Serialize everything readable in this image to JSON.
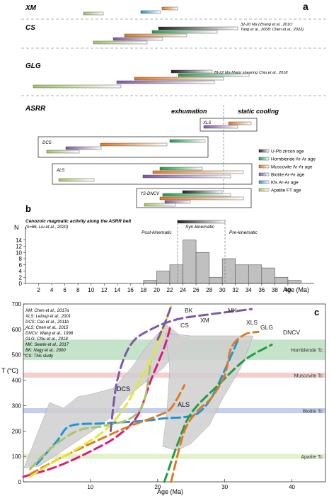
{
  "panel_labels": {
    "a": "a",
    "b": "b",
    "c": "c"
  },
  "panel_a": {
    "sections": [
      {
        "id": "xm",
        "label": "XM"
      },
      {
        "id": "cs",
        "label": "CS",
        "note": "32-20 Ma (Zhang et al., 2010;\nTang et al., 2008; Chen et al., 2022)"
      },
      {
        "id": "glg",
        "label": "GLG",
        "note": "28-22 Ma Major shearing Chiu et al., 2018"
      },
      {
        "id": "asrr",
        "label": "ASRR",
        "phase_left": "exhumation",
        "phase_right": "static cooling"
      }
    ],
    "boxes": [
      {
        "label": "XLS"
      },
      {
        "label": "DCS"
      },
      {
        "label": "ALS"
      },
      {
        "label": "YS-DNCV"
      }
    ],
    "legend": [
      {
        "label": "U-Pb zircon age",
        "color": "#222222"
      },
      {
        "label": "Hornblende Ar-Ar age",
        "color": "#1e9e4a"
      },
      {
        "label": "Muscovite Ar-Ar age",
        "color": "#e07a1f"
      },
      {
        "label": "Biotite Ar-Ar age",
        "color": "#7e58a8"
      },
      {
        "label": "Kfs Ar-Ar age",
        "color": "#2196d3"
      },
      {
        "label": "Apatite FT age",
        "color": "#a8c56a"
      }
    ]
  },
  "panel_b": {
    "title": "Cenozoic magmatic activity along the ASRR belt",
    "subtitle": "(n=66, Liu et al., 2020)",
    "ylabel": "N",
    "xlabel": "Age (Ma)",
    "annotations": {
      "post": "Post-kinematic",
      "syn": "Syn-kinematic",
      "pre": "Pre-kinematic"
    }
  },
  "panel_c": {
    "ylabel": "T (°C)",
    "xlabel": "Age (Ma)",
    "refs": [
      "XM: Chen et al., 2017a",
      "XLS: Leloup et al., 2001",
      "DCS: Cao et al., 2011b",
      "ALS: Chen et al., 2015",
      "DNCV: Wang et al., 1998",
      "GLG: Chiu et al., 2018",
      "MK: Searle et al., 2017",
      "BK: Nagy et al., 2000",
      "CS: This study"
    ],
    "bands": [
      {
        "label": "Hornblende Tc",
        "color": "#2e9c3c"
      },
      {
        "label": "Muscovite Tc",
        "color": "#e05050"
      },
      {
        "label": "Biotite Tc",
        "color": "#3050c0"
      },
      {
        "label": "Apatite Tc",
        "color": "#9ccc40"
      }
    ],
    "region_labels": [
      "DCS",
      "ALS"
    ],
    "curve_labels": [
      "BK",
      "MK",
      "CS",
      "XM",
      "XLS",
      "GLG",
      "DNCV"
    ]
  },
  "chart_data": [
    {
      "type": "bar",
      "title": "Cenozoic magmatic activity along the ASRR belt",
      "xlabel": "Age (Ma)",
      "ylabel": "N",
      "xlim": [
        0,
        44
      ],
      "ylim": [
        0,
        16
      ],
      "x_ticks": [
        2,
        4,
        6,
        8,
        10,
        12,
        14,
        16,
        18,
        20,
        22,
        24,
        26,
        28,
        30,
        32,
        34,
        36,
        38,
        40
      ],
      "y_ticks": [
        0,
        2,
        4,
        6,
        8,
        10,
        12,
        14
      ],
      "bins": [
        {
          "x0": 18,
          "x1": 20,
          "value": 1
        },
        {
          "x0": 20,
          "x1": 22,
          "value": 4
        },
        {
          "x0": 22,
          "x1": 24,
          "value": 6
        },
        {
          "x0": 24,
          "x1": 26,
          "value": 14
        },
        {
          "x0": 26,
          "x1": 28,
          "value": 10
        },
        {
          "x0": 28,
          "x1": 30,
          "value": 2
        },
        {
          "x0": 30,
          "x1": 32,
          "value": 8
        },
        {
          "x0": 32,
          "x1": 34,
          "value": 6
        },
        {
          "x0": 34,
          "x1": 36,
          "value": 6
        },
        {
          "x0": 36,
          "x1": 38,
          "value": 5
        },
        {
          "x0": 38,
          "x1": 40,
          "value": 2
        },
        {
          "x0": 40,
          "x1": 42,
          "value": 1
        }
      ]
    },
    {
      "type": "line",
      "xlabel": "Age (Ma)",
      "ylabel": "T (°C)",
      "xlim": [
        0,
        45
      ],
      "ylim": [
        0,
        700
      ],
      "x_ticks": [
        10,
        20,
        30,
        40
      ],
      "y_ticks": [
        0,
        100,
        200,
        300,
        400,
        500,
        600,
        700
      ],
      "bands": [
        {
          "name": "Hornblende Tc",
          "y0": 480,
          "y1": 560
        },
        {
          "name": "Muscovite Tc",
          "y0": 410,
          "y1": 430
        },
        {
          "name": "Biotite Tc",
          "y0": 270,
          "y1": 290
        },
        {
          "name": "Apatite Tc",
          "y0": 90,
          "y1": 110
        }
      ],
      "series": [
        {
          "name": "XM",
          "color": "#dd1a7a",
          "points": [
            [
              0,
              20
            ],
            [
              5,
              60
            ],
            [
              10,
              120
            ],
            [
              14,
              180
            ],
            [
              17,
              260
            ],
            [
              19,
              400
            ],
            [
              21,
              530
            ],
            [
              22,
              620
            ]
          ]
        },
        {
          "name": "XLS",
          "color": "#2196d3",
          "points": [
            [
              2,
              70
            ],
            [
              5,
              160
            ],
            [
              7,
              220
            ],
            [
              12,
              230
            ],
            [
              18,
              240
            ],
            [
              21,
              250
            ],
            [
              24,
              255
            ],
            [
              26,
              270
            ],
            [
              28,
              330
            ],
            [
              30,
              440
            ],
            [
              32,
              560
            ]
          ]
        },
        {
          "name": "DCS",
          "color": "#a8c56a",
          "points": [
            [
              1,
              50
            ],
            [
              4,
              130
            ],
            [
              8,
              200
            ],
            [
              12,
              220
            ],
            [
              16,
              250
            ],
            [
              18,
              320
            ],
            [
              19,
              480
            ]
          ]
        },
        {
          "name": "ALS",
          "color": "#e07a1f",
          "points": [
            [
              1,
              30
            ],
            [
              6,
              100
            ],
            [
              10,
              150
            ],
            [
              15,
              210
            ],
            [
              18,
              240
            ],
            [
              20,
              260
            ],
            [
              22,
              290
            ],
            [
              24,
              380
            ]
          ]
        },
        {
          "name": "DNCV",
          "color": "#1e9e4a",
          "points": [
            [
              21,
              0
            ],
            [
              23,
              150
            ],
            [
              25,
              270
            ],
            [
              29,
              380
            ],
            [
              33,
              480
            ],
            [
              37,
              540
            ]
          ]
        },
        {
          "name": "GLG",
          "color": "#e07a1f",
          "points": [
            [
              22,
              0
            ],
            [
              24,
              200
            ],
            [
              26,
              280
            ],
            [
              28,
              330
            ],
            [
              30,
              420
            ],
            [
              31,
              530
            ],
            [
              33,
              580
            ],
            [
              35,
              590
            ]
          ]
        },
        {
          "name": "CS",
          "color": "#e6e632",
          "points": [
            [
              1,
              20
            ],
            [
              4,
              70
            ],
            [
              8,
              130
            ],
            [
              12,
              200
            ],
            [
              15,
              290
            ],
            [
              18,
              430
            ],
            [
              20,
              540
            ],
            [
              22,
              690
            ]
          ]
        },
        {
          "name": "MK",
          "color": "#7e58a8",
          "points": [
            [
              13,
              200
            ],
            [
              14,
              400
            ],
            [
              16,
              540
            ],
            [
              19,
              600
            ],
            [
              23,
              640
            ],
            [
              28,
              660
            ],
            [
              34,
              680
            ]
          ]
        },
        {
          "name": "BK",
          "color": "#7e58a8",
          "points": [
            [
              20,
              560
            ],
            [
              21,
              620
            ],
            [
              22,
              690
            ]
          ]
        }
      ]
    }
  ]
}
